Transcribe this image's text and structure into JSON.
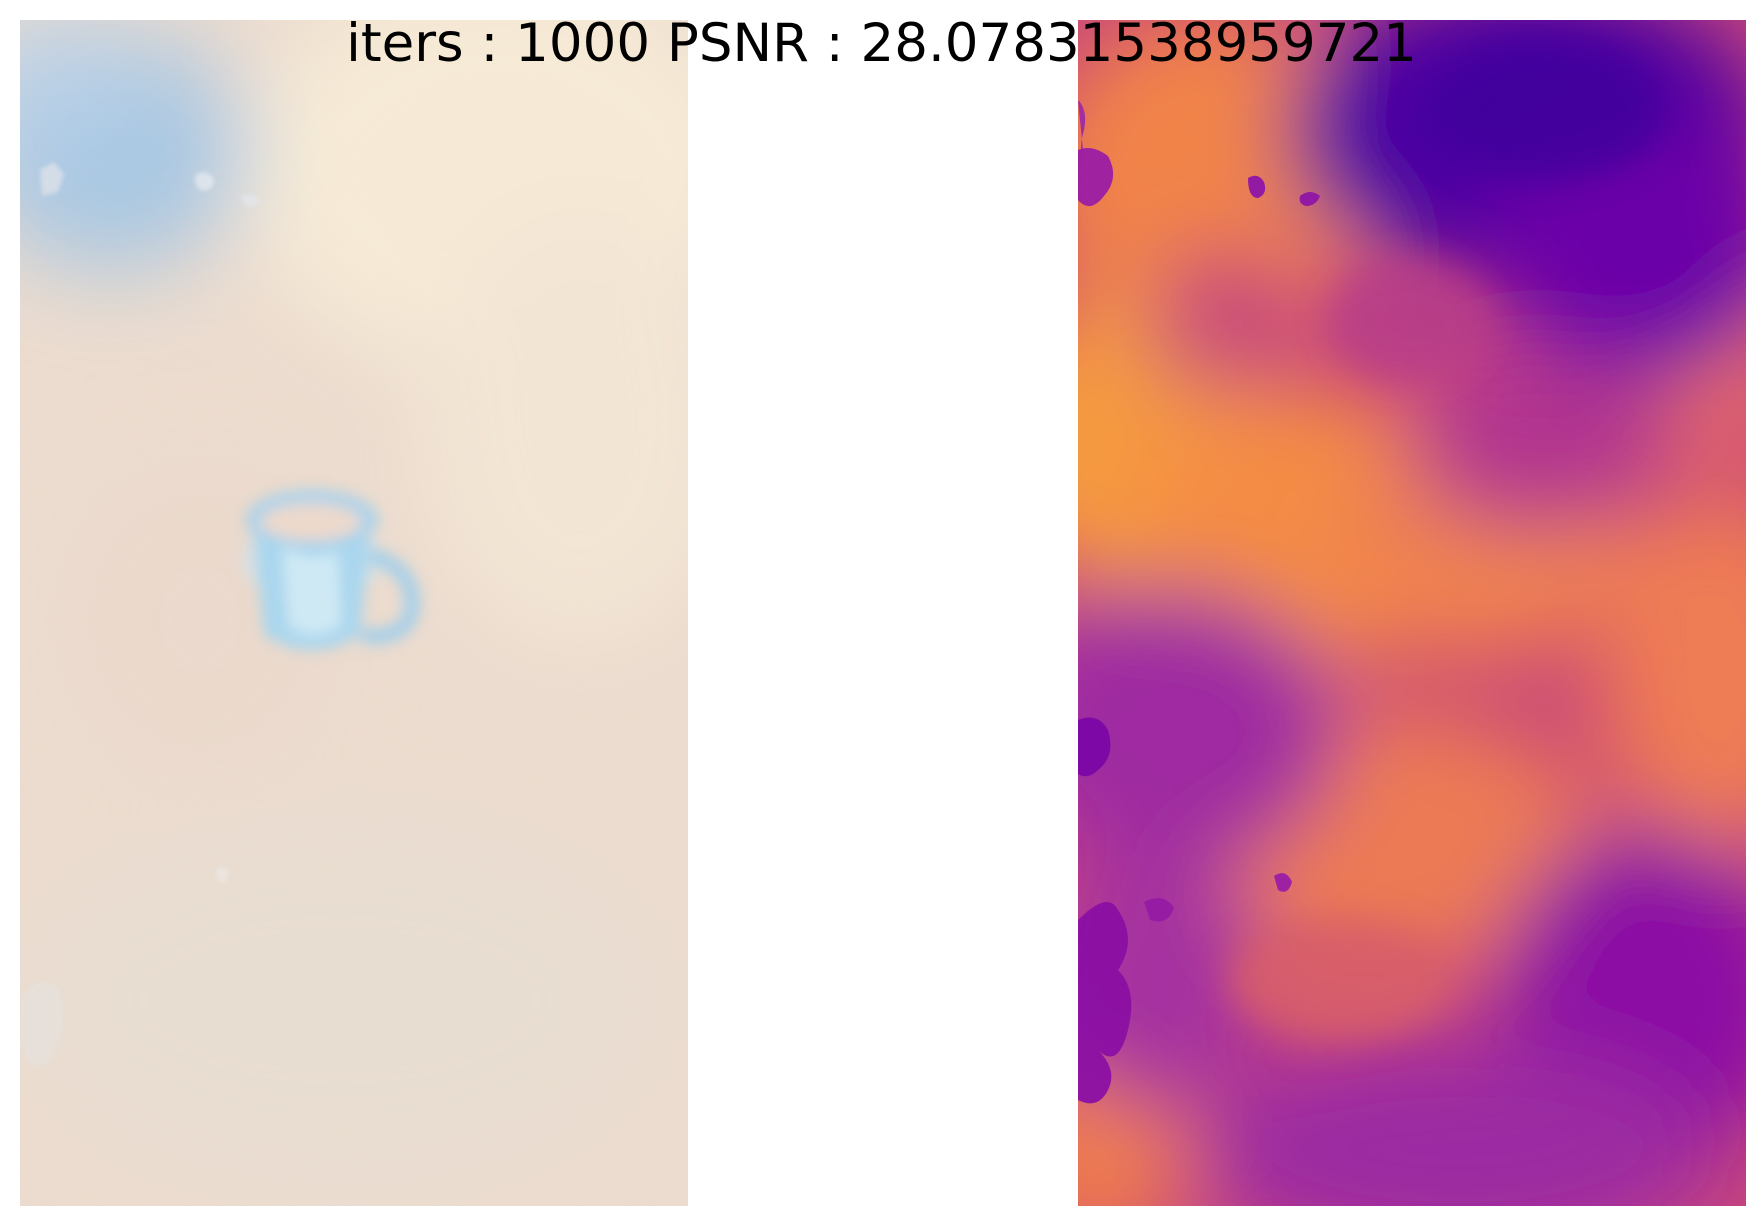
{
  "figure": {
    "title": "iters : 1000 PSNR : 28.07831538959721"
  },
  "panels": [
    {
      "role": "rendered-rgb",
      "content": "blurred rendering of a blue mug on a beige surface",
      "colors": {
        "background": "#ecdccf",
        "warm_highlight": "#f6ead6",
        "sky_blue": "#9cc3e6",
        "mug_blue": "#a9d6ee",
        "mug_inner": "#ecd9cc"
      }
    },
    {
      "role": "depth-map",
      "colormap": "plasma",
      "colors": {
        "base": "#c8467c",
        "orange": "#f1834a",
        "bright_orange": "#f59a3f",
        "purple": "#9f2aa1",
        "deep_purple": "#4b03a2"
      }
    }
  ]
}
